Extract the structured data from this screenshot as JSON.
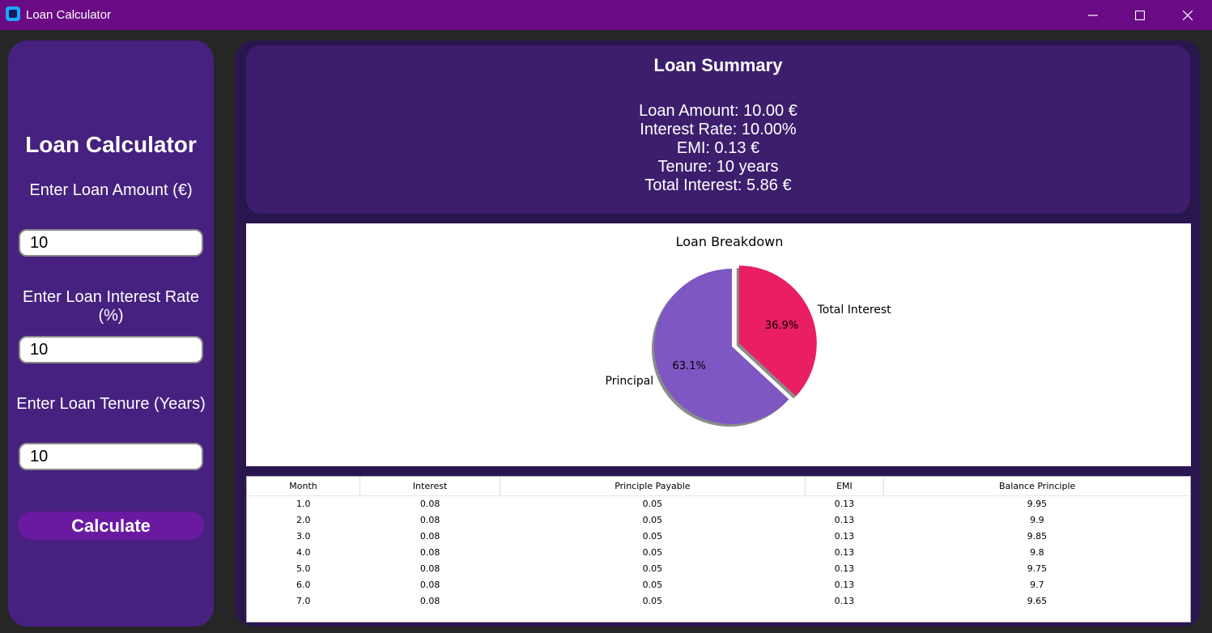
{
  "window": {
    "title": "Loan Calculator"
  },
  "sidebar": {
    "title": "Loan Calculator",
    "amount_label": "Enter Loan Amount (€)",
    "amount_value": "10",
    "rate_label": "Enter Loan Interest Rate (%)",
    "rate_value": "10",
    "tenure_label": "Enter Loan Tenure (Years)",
    "tenure_value": "10",
    "calculate_label": "Calculate"
  },
  "summary": {
    "title": "Loan Summary",
    "loan_amount": "Loan Amount: 10.00 €",
    "interest_rate": "Interest Rate: 10.00%",
    "emi": "EMI: 0.13 €",
    "tenure": "Tenure: 10 years",
    "total_interest": "Total Interest: 5.86 €"
  },
  "chart_data": {
    "type": "pie",
    "title": "Loan Breakdown",
    "labels": [
      "Principal",
      "Total Interest"
    ],
    "values": [
      63.1,
      36.9
    ],
    "value_labels": [
      "63.1%",
      "36.9%"
    ],
    "colors": [
      "#7e57c2",
      "#e91e63"
    ],
    "explode": [
      0,
      0.1
    ],
    "shadow": true
  },
  "table": {
    "columns": [
      "Month",
      "Interest",
      "Principle Payable",
      "EMI",
      "Balance Principle"
    ],
    "rows": [
      [
        "1.0",
        "0.08",
        "0.05",
        "0.13",
        "9.95"
      ],
      [
        "2.0",
        "0.08",
        "0.05",
        "0.13",
        "9.9"
      ],
      [
        "3.0",
        "0.08",
        "0.05",
        "0.13",
        "9.85"
      ],
      [
        "4.0",
        "0.08",
        "0.05",
        "0.13",
        "9.8"
      ],
      [
        "5.0",
        "0.08",
        "0.05",
        "0.13",
        "9.75"
      ],
      [
        "6.0",
        "0.08",
        "0.05",
        "0.13",
        "9.7"
      ],
      [
        "7.0",
        "0.08",
        "0.05",
        "0.13",
        "9.65"
      ]
    ]
  }
}
